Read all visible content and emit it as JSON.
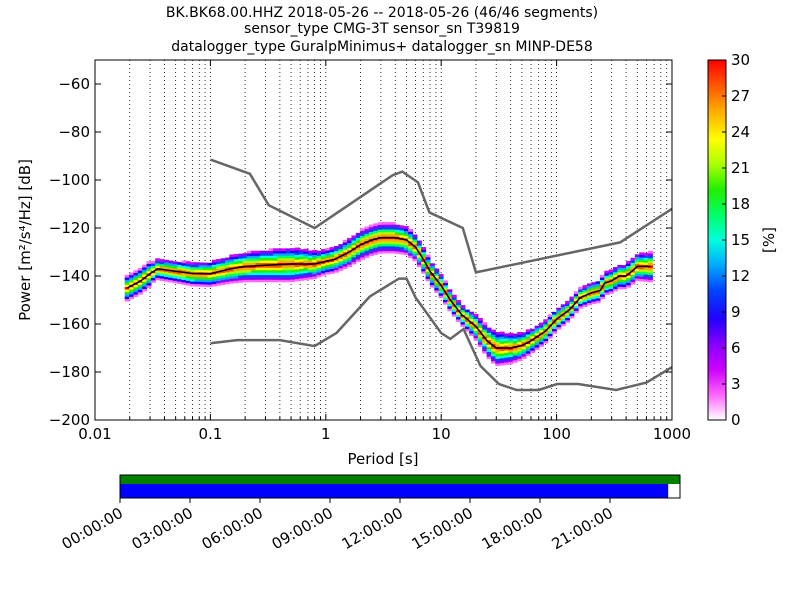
{
  "title_lines": [
    "BK.BK68.00.HHZ   2018-05-26 -- 2018-05-26  (46/46 segments)",
    "sensor_type CMG-3T sensor_sn T39819",
    "datalogger_type GuralpMinimus+ datalogger_sn MINP-DE58"
  ],
  "chart_data": {
    "type": "heatmap",
    "xlabel": "Period [s]",
    "ylabel": "Power [m²/s⁴/Hz] [dB]",
    "x_scale": "log",
    "xlim": [
      0.01,
      1000
    ],
    "ylim": [
      -200,
      -50
    ],
    "x_tick_labels": [
      {
        "value": 0.01,
        "label": "0.01"
      },
      {
        "value": 0.1,
        "label": "0.1"
      },
      {
        "value": 1,
        "label": "1"
      },
      {
        "value": 10,
        "label": "10"
      },
      {
        "value": 100,
        "label": "100"
      },
      {
        "value": 1000,
        "label": "1000"
      }
    ],
    "y_ticks": [
      -200,
      -180,
      -160,
      -140,
      -120,
      -100,
      -80,
      -60
    ],
    "grid": "dotted vertical",
    "colorbar": {
      "label": "[%]",
      "min": 0,
      "max": 30,
      "ticks": [
        0,
        3,
        6,
        9,
        12,
        15,
        18,
        21,
        24,
        27,
        30
      ],
      "colormap": "pqlx"
    },
    "nlnm": [
      [
        0.1,
        -168
      ],
      [
        0.17,
        -166.7
      ],
      [
        0.4,
        -166.7
      ],
      [
        0.8,
        -169.2
      ],
      [
        1.24,
        -163.7
      ],
      [
        2.4,
        -148.6
      ],
      [
        4.3,
        -141.1
      ],
      [
        5,
        -141.1
      ],
      [
        6,
        -149
      ],
      [
        10,
        -163.8
      ],
      [
        12,
        -166.2
      ],
      [
        15.6,
        -162.1
      ],
      [
        21.9,
        -177.5
      ],
      [
        31.6,
        -185
      ],
      [
        45,
        -187.5
      ],
      [
        70,
        -187.5
      ],
      [
        101,
        -185
      ],
      [
        154,
        -185
      ],
      [
        328,
        -187.5
      ],
      [
        600,
        -184.4
      ],
      [
        1000,
        -178
      ]
    ],
    "nhnm": [
      [
        0.1,
        -91.5
      ],
      [
        0.22,
        -97.4
      ],
      [
        0.32,
        -110.5
      ],
      [
        0.8,
        -120
      ],
      [
        3.8,
        -98
      ],
      [
        4.6,
        -96.5
      ],
      [
        6.3,
        -101
      ],
      [
        7.9,
        -113.5
      ],
      [
        15.4,
        -120
      ],
      [
        20,
        -138.5
      ],
      [
        354.8,
        -126
      ],
      [
        1000,
        -112
      ]
    ],
    "mean_psd": [
      [
        0.019,
        -145
      ],
      [
        0.025,
        -142
      ],
      [
        0.03,
        -139
      ],
      [
        0.035,
        -137
      ],
      [
        0.05,
        -138
      ],
      [
        0.07,
        -139
      ],
      [
        0.1,
        -139
      ],
      [
        0.15,
        -137
      ],
      [
        0.2,
        -136
      ],
      [
        0.3,
        -135.5
      ],
      [
        0.5,
        -135
      ],
      [
        0.8,
        -135
      ],
      [
        1.2,
        -133
      ],
      [
        1.6,
        -130
      ],
      [
        2,
        -127
      ],
      [
        2.5,
        -125
      ],
      [
        3,
        -124
      ],
      [
        4,
        -124
      ],
      [
        5,
        -125
      ],
      [
        6,
        -128
      ],
      [
        7,
        -133
      ],
      [
        8,
        -138
      ],
      [
        10,
        -144
      ],
      [
        12,
        -150
      ],
      [
        15,
        -156
      ],
      [
        20,
        -161
      ],
      [
        25,
        -167
      ],
      [
        30,
        -170
      ],
      [
        40,
        -170
      ],
      [
        50,
        -169
      ],
      [
        60,
        -167
      ],
      [
        80,
        -163
      ],
      [
        100,
        -158
      ],
      [
        130,
        -154
      ],
      [
        160,
        -149
      ],
      [
        200,
        -147
      ],
      [
        240,
        -146
      ],
      [
        260,
        -143
      ],
      [
        300,
        -142
      ],
      [
        350,
        -140
      ],
      [
        400,
        -140
      ],
      [
        450,
        -138
      ],
      [
        500,
        -136
      ],
      [
        600,
        -136
      ],
      [
        650,
        -136
      ]
    ],
    "scatter_spread": [
      [
        0.03,
        2
      ],
      [
        0.1,
        3
      ],
      [
        0.2,
        4
      ],
      [
        0.5,
        5
      ],
      [
        1,
        3
      ],
      [
        2,
        4
      ],
      [
        4,
        4
      ],
      [
        8,
        3
      ],
      [
        15,
        2
      ],
      [
        30,
        5
      ],
      [
        60,
        3
      ],
      [
        150,
        2
      ],
      [
        400,
        3
      ],
      [
        650,
        4
      ]
    ]
  },
  "availability": {
    "time_tick_labels": [
      "00:00:00",
      "03:00:00",
      "06:00:00",
      "09:00:00",
      "12:00:00",
      "15:00:00",
      "18:00:00",
      "21:00:00"
    ],
    "hours_span": 24,
    "data_coverage_fraction": 0.979,
    "top_bar_color": "#008000",
    "data_bar_color": "#0000ff"
  },
  "colors": {
    "noise_model": "#666666",
    "mean_psd": "#000000"
  }
}
